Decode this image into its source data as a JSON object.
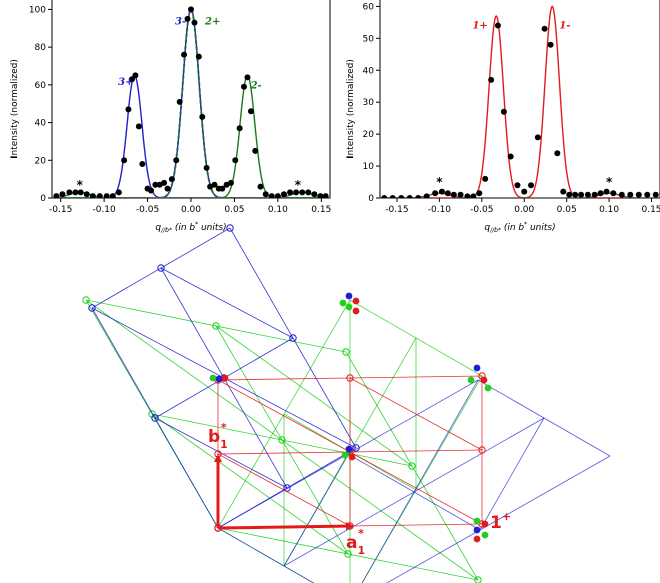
{
  "chart_data": [
    {
      "type": "line",
      "panel": "left",
      "xlabel_main": "q",
      "xlabel_sub": "//b*",
      "xlabel_rest": " (in b",
      "xlabel_sup": "*",
      "xlabel_end": " units)",
      "ylabel_main": "I",
      "ylabel_rest": "ntensity (normalized)",
      "xlim": [
        -0.16,
        0.16
      ],
      "ylim": [
        0,
        105
      ],
      "xticks": [
        "-0.15",
        "-0.10",
        "-0.05",
        "0.00",
        "0.05",
        "0.10",
        "0.15"
      ],
      "xtick_values": [
        -0.15,
        -0.1,
        -0.05,
        0.0,
        0.05,
        0.1,
        0.15
      ],
      "yticks": [
        "0",
        "20",
        "40",
        "60",
        "80",
        "100"
      ],
      "ytick_values": [
        0,
        20,
        40,
        60,
        80,
        100
      ],
      "peak_labels": [
        {
          "text": "3+",
          "x": -0.075,
          "y": 60,
          "color": "#1f1fd0"
        },
        {
          "text": "3-",
          "x": -0.012,
          "y": 92,
          "color": "#1f1fd0"
        },
        {
          "text": "2+",
          "x": 0.025,
          "y": 92,
          "color": "#1a7a1a"
        },
        {
          "text": "2-",
          "x": 0.075,
          "y": 58,
          "color": "#1a7a1a"
        }
      ],
      "stars": [
        {
          "text": "*",
          "x": -0.128,
          "y": 7
        },
        {
          "text": "*",
          "x": 0.123,
          "y": 7
        }
      ],
      "series": [
        {
          "color": "#1f1fd0",
          "style": "line",
          "peaks": [
            {
              "center": -0.065,
              "height": 65,
              "sigma": 0.0085
            }
          ]
        },
        {
          "color": "#1f1fd0",
          "style": "line",
          "peaks": [
            {
              "center": 0.0,
              "height": 100,
              "sigma": 0.0095
            }
          ]
        },
        {
          "color": "#1a7a1a",
          "style": "line",
          "peaks": [
            {
              "center": 0.065,
              "height": 65,
              "sigma": 0.0085
            }
          ]
        },
        {
          "color": "#1a7a1a",
          "style": "dashed",
          "peaks": [
            {
              "center": 0.0,
              "height": 100,
              "sigma": 0.0095
            }
          ]
        },
        {
          "color": "#555555",
          "style": "line",
          "peaks": [
            {
              "center": -0.128,
              "height": 3,
              "sigma": 0.012
            },
            {
              "center": 0.128,
              "height": 3,
              "sigma": 0.012
            }
          ]
        }
      ],
      "points": {
        "color": "#000000",
        "x": [
          -0.155,
          -0.148,
          -0.14,
          -0.133,
          -0.127,
          -0.12,
          -0.113,
          -0.105,
          -0.097,
          -0.09,
          -0.083,
          -0.077,
          -0.072,
          -0.068,
          -0.064,
          -0.06,
          -0.056,
          -0.05,
          -0.046,
          -0.041,
          -0.036,
          -0.031,
          -0.027,
          -0.022,
          -0.017,
          -0.013,
          -0.008,
          -0.004,
          0.0,
          0.004,
          0.009,
          0.013,
          0.018,
          0.022,
          0.027,
          0.032,
          0.036,
          0.041,
          0.046,
          0.051,
          0.056,
          0.061,
          0.065,
          0.069,
          0.074,
          0.08,
          0.086,
          0.093,
          0.1,
          0.107,
          0.114,
          0.121,
          0.128,
          0.135,
          0.142,
          0.149,
          0.155
        ],
        "y": [
          1,
          2,
          3,
          3,
          3,
          2,
          1,
          1,
          1,
          1,
          3,
          20,
          47,
          63,
          65,
          38,
          18,
          5,
          4,
          7,
          7,
          8,
          5,
          10,
          20,
          51,
          76,
          95,
          100,
          93,
          75,
          43,
          16,
          6,
          7,
          5,
          5,
          7,
          8,
          20,
          37,
          59,
          64,
          46,
          25,
          6,
          2,
          1,
          1,
          2,
          3,
          3,
          3,
          3,
          2,
          1,
          1
        ]
      }
    },
    {
      "type": "line",
      "panel": "right",
      "xlabel_main": "q",
      "xlabel_sub": "//b*",
      "xlabel_rest": " (in b",
      "xlabel_sup": "*",
      "xlabel_end": " units)",
      "ylabel_main": "I",
      "ylabel_rest": "ntensity (normalized)",
      "xlim": [
        -0.17,
        0.16
      ],
      "ylim": [
        0,
        62
      ],
      "xticks": [
        "-0.15",
        "-0.10",
        "-0.05",
        "0.00",
        "0.05",
        "0.10",
        "0.15"
      ],
      "xtick_values": [
        -0.15,
        -0.1,
        -0.05,
        0.0,
        0.05,
        0.1,
        0.15
      ],
      "yticks": [
        "0",
        "10",
        "20",
        "30",
        "40",
        "50",
        "60"
      ],
      "ytick_values": [
        0,
        10,
        20,
        30,
        40,
        50,
        60
      ],
      "peak_labels": [
        {
          "text": "1+",
          "x": -0.052,
          "y": 53,
          "color": "#e31a1c"
        },
        {
          "text": "1-",
          "x": 0.048,
          "y": 53,
          "color": "#e31a1c"
        }
      ],
      "stars": [
        {
          "text": "*",
          "x": -0.1,
          "y": 5
        },
        {
          "text": "*",
          "x": 0.1,
          "y": 5
        }
      ],
      "series": [
        {
          "color": "#e31a1c",
          "style": "line",
          "peaks": [
            {
              "center": -0.033,
              "height": 57,
              "sigma": 0.0085
            },
            {
              "center": 0.033,
              "height": 60,
              "sigma": 0.0085
            }
          ]
        },
        {
          "color": "#555555",
          "style": "line",
          "peaks": [
            {
              "center": -0.1,
              "height": 1.5,
              "sigma": 0.012
            },
            {
              "center": 0.1,
              "height": 1.5,
              "sigma": 0.012
            }
          ]
        }
      ],
      "points": {
        "color": "#000000",
        "x": [
          -0.165,
          -0.155,
          -0.145,
          -0.135,
          -0.125,
          -0.115,
          -0.105,
          -0.097,
          -0.09,
          -0.083,
          -0.075,
          -0.067,
          -0.06,
          -0.053,
          -0.046,
          -0.039,
          -0.031,
          -0.024,
          -0.016,
          -0.008,
          0.0,
          0.008,
          0.016,
          0.024,
          0.031,
          0.039,
          0.046,
          0.053,
          0.06,
          0.067,
          0.075,
          0.083,
          0.09,
          0.097,
          0.105,
          0.115,
          0.125,
          0.135,
          0.145,
          0.155
        ],
        "y": [
          0,
          0,
          0,
          0,
          0,
          0.5,
          1.5,
          2,
          1.5,
          1,
          1,
          0.5,
          0.5,
          1.5,
          6,
          37,
          54,
          27,
          13,
          4,
          2,
          4,
          19,
          53,
          48,
          14,
          2,
          1,
          1,
          1,
          1,
          1,
          1.5,
          2,
          1.5,
          1,
          1,
          1,
          1,
          1
        ]
      }
    }
  ],
  "lattice": {
    "vector_a": "a",
    "vector_a_sub": "1",
    "vector_a_sup": "*",
    "vector_b": "b",
    "vector_b_sub": "1",
    "vector_b_sup": "*",
    "order_label": "1",
    "order_label_sup": "+",
    "colors": {
      "red": "#e31a1c",
      "blue": "#1f1fd0",
      "green": "#1fd01f"
    }
  }
}
